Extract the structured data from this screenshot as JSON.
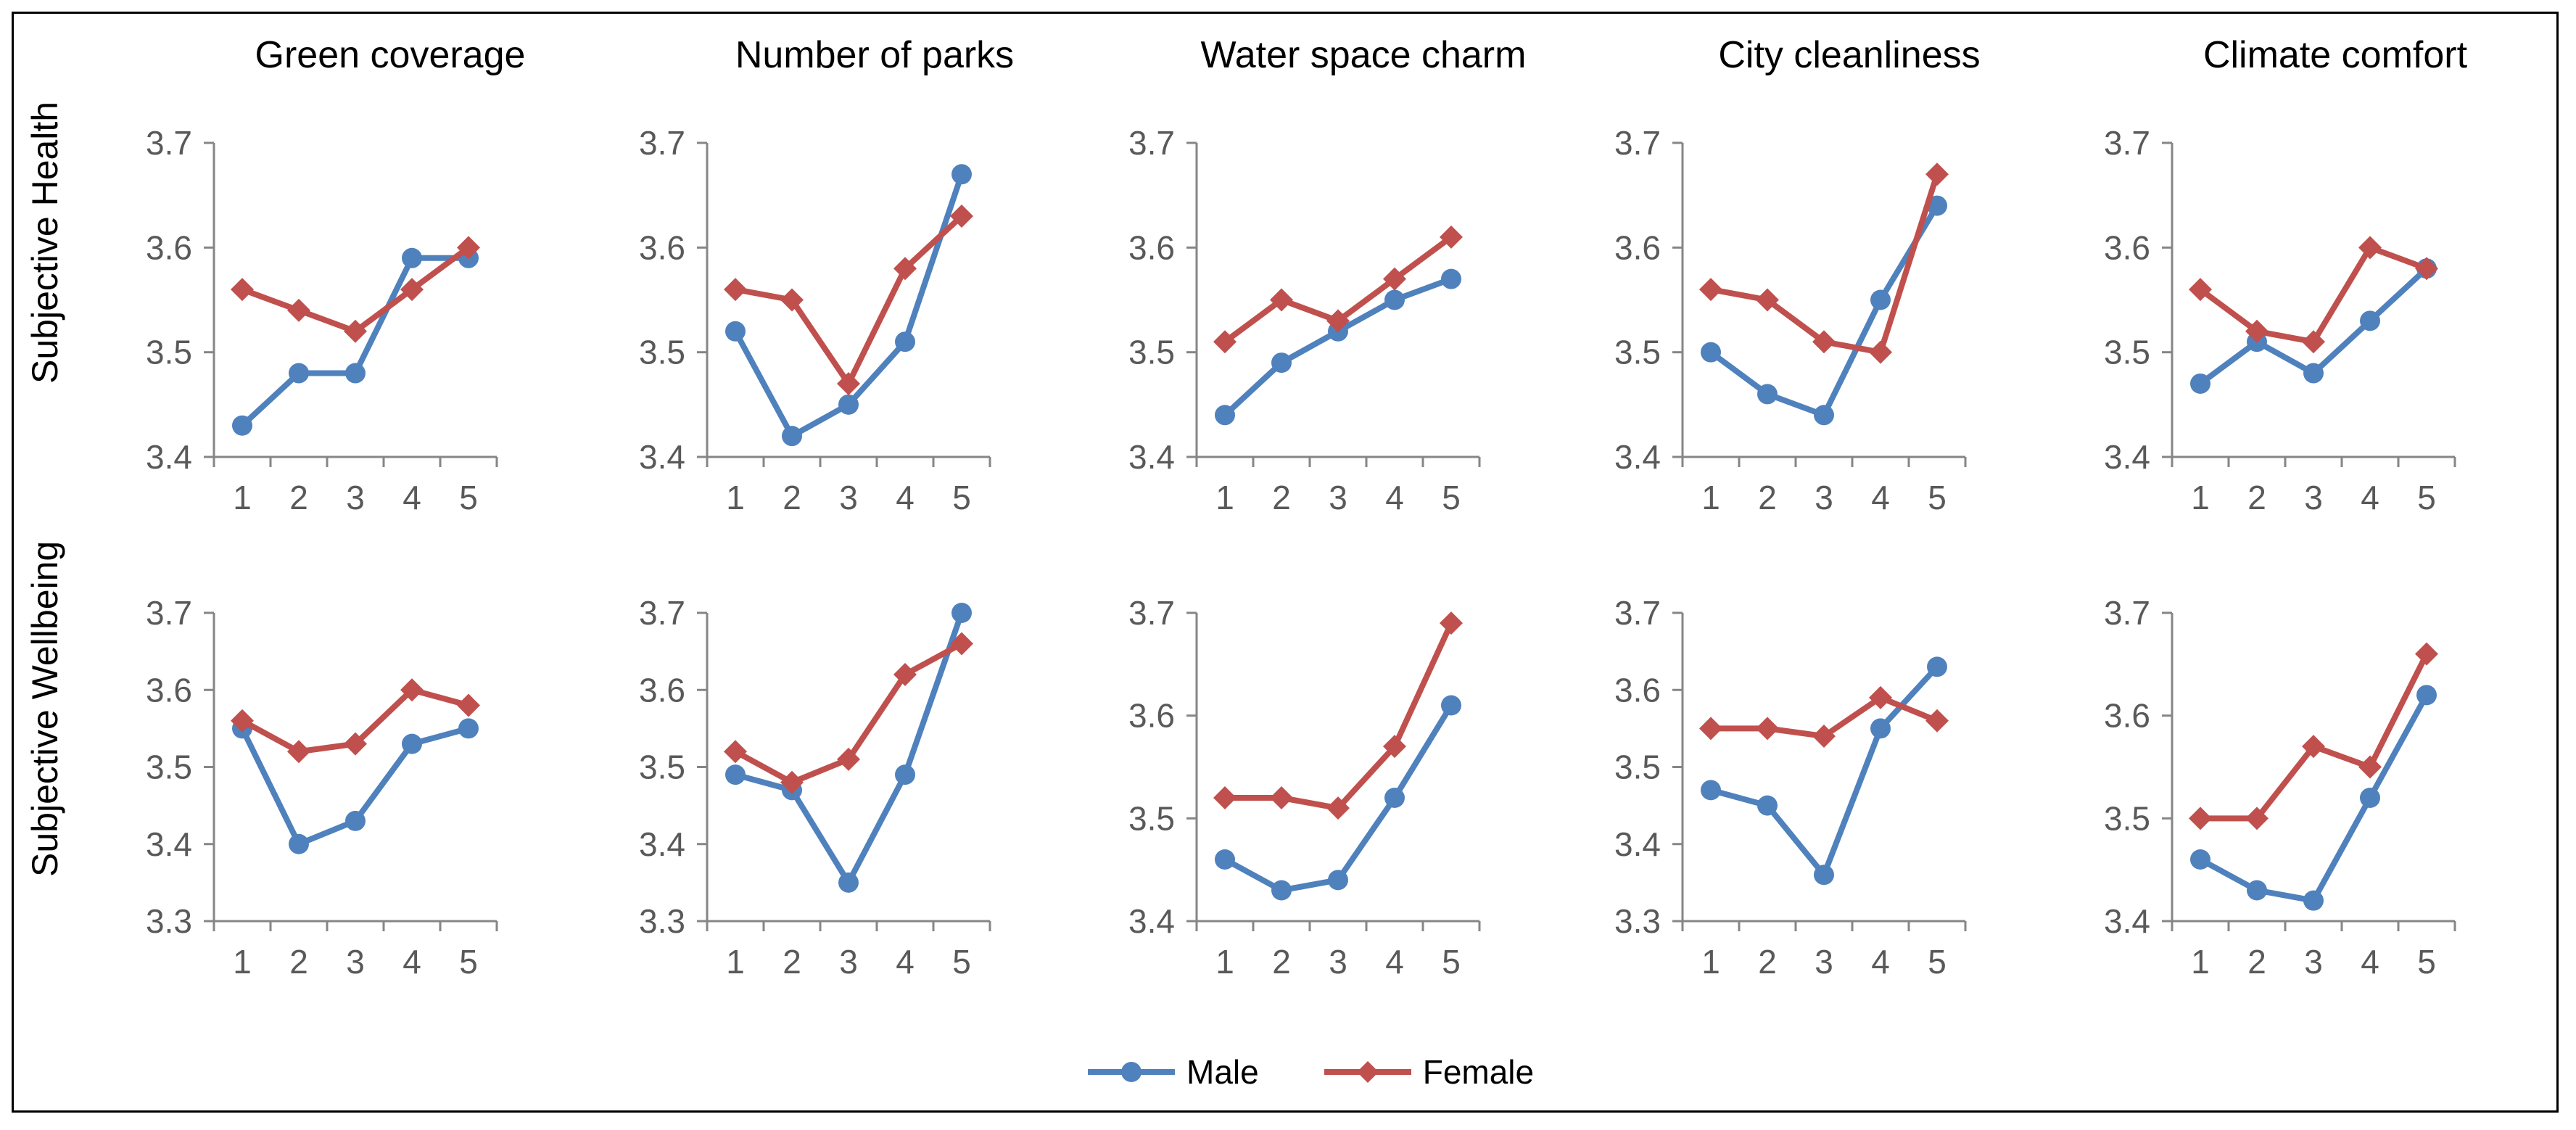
{
  "column_titles": [
    "Green coverage",
    "Number of parks",
    "Water space charm",
    "City cleanliness",
    "Climate comfort"
  ],
  "row_titles": [
    "Subjective  Health",
    "Subjective Wellbeing"
  ],
  "legend": {
    "male": "Male",
    "female": "Female"
  },
  "colors": {
    "male": "#4f81bd",
    "female": "#c0504d",
    "axis": "#868686"
  },
  "chart_data": [
    {
      "type": "line",
      "row": 0,
      "col": 0,
      "title": "Green coverage",
      "ylabel": "Subjective  Health",
      "categories": [
        "1",
        "2",
        "3",
        "4",
        "5"
      ],
      "ylim": [
        3.4,
        3.7
      ],
      "yticks": [
        "3.4",
        "3.5",
        "3.6",
        "3.7"
      ],
      "series": [
        {
          "name": "Male",
          "values": [
            3.43,
            3.48,
            3.48,
            3.59,
            3.59
          ]
        },
        {
          "name": "Female",
          "values": [
            3.56,
            3.54,
            3.52,
            3.56,
            3.6
          ]
        }
      ]
    },
    {
      "type": "line",
      "row": 0,
      "col": 1,
      "title": "Number of parks",
      "categories": [
        "1",
        "2",
        "3",
        "4",
        "5"
      ],
      "ylim": [
        3.4,
        3.7
      ],
      "yticks": [
        "3.4",
        "3.5",
        "3.6",
        "3.7"
      ],
      "series": [
        {
          "name": "Male",
          "values": [
            3.52,
            3.42,
            3.45,
            3.51,
            3.67
          ]
        },
        {
          "name": "Female",
          "values": [
            3.56,
            3.55,
            3.47,
            3.58,
            3.63
          ]
        }
      ]
    },
    {
      "type": "line",
      "row": 0,
      "col": 2,
      "title": "Water space charm",
      "categories": [
        "1",
        "2",
        "3",
        "4",
        "5"
      ],
      "ylim": [
        3.4,
        3.7
      ],
      "yticks": [
        "3.4",
        "3.5",
        "3.6",
        "3.7"
      ],
      "series": [
        {
          "name": "Male",
          "values": [
            3.44,
            3.49,
            3.52,
            3.55,
            3.57
          ]
        },
        {
          "name": "Female",
          "values": [
            3.51,
            3.55,
            3.53,
            3.57,
            3.61
          ]
        }
      ]
    },
    {
      "type": "line",
      "row": 0,
      "col": 3,
      "title": "City cleanliness",
      "categories": [
        "1",
        "2",
        "3",
        "4",
        "5"
      ],
      "ylim": [
        3.4,
        3.7
      ],
      "yticks": [
        "3.4",
        "3.5",
        "3.6",
        "3.7"
      ],
      "series": [
        {
          "name": "Male",
          "values": [
            3.5,
            3.46,
            3.44,
            3.55,
            3.64
          ]
        },
        {
          "name": "Female",
          "values": [
            3.56,
            3.55,
            3.51,
            3.5,
            3.67
          ]
        }
      ]
    },
    {
      "type": "line",
      "row": 0,
      "col": 4,
      "title": "Climate comfort",
      "categories": [
        "1",
        "2",
        "3",
        "4",
        "5"
      ],
      "ylim": [
        3.4,
        3.7
      ],
      "yticks": [
        "3.4",
        "3.5",
        "3.6",
        "3.7"
      ],
      "series": [
        {
          "name": "Male",
          "values": [
            3.47,
            3.51,
            3.48,
            3.53,
            3.58
          ]
        },
        {
          "name": "Female",
          "values": [
            3.56,
            3.52,
            3.51,
            3.6,
            3.58
          ]
        }
      ]
    },
    {
      "type": "line",
      "row": 1,
      "col": 0,
      "ylabel": "Subjective Wellbeing",
      "categories": [
        "1",
        "2",
        "3",
        "4",
        "5"
      ],
      "ylim": [
        3.3,
        3.7
      ],
      "yticks": [
        "3.3",
        "3.4",
        "3.5",
        "3.6",
        "3.7"
      ],
      "series": [
        {
          "name": "Male",
          "values": [
            3.55,
            3.4,
            3.43,
            3.53,
            3.55
          ]
        },
        {
          "name": "Female",
          "values": [
            3.56,
            3.52,
            3.53,
            3.6,
            3.58
          ]
        }
      ]
    },
    {
      "type": "line",
      "row": 1,
      "col": 1,
      "categories": [
        "1",
        "2",
        "3",
        "4",
        "5"
      ],
      "ylim": [
        3.3,
        3.7
      ],
      "yticks": [
        "3.3",
        "3.4",
        "3.5",
        "3.6",
        "3.7"
      ],
      "series": [
        {
          "name": "Male",
          "values": [
            3.49,
            3.47,
            3.35,
            3.49,
            3.7
          ]
        },
        {
          "name": "Female",
          "values": [
            3.52,
            3.48,
            3.51,
            3.62,
            3.66
          ]
        }
      ]
    },
    {
      "type": "line",
      "row": 1,
      "col": 2,
      "categories": [
        "1",
        "2",
        "3",
        "4",
        "5"
      ],
      "ylim": [
        3.4,
        3.7
      ],
      "yticks": [
        "3.4",
        "3.5",
        "3.6",
        "3.7"
      ],
      "series": [
        {
          "name": "Male",
          "values": [
            3.46,
            3.43,
            3.44,
            3.52,
            3.61
          ]
        },
        {
          "name": "Female",
          "values": [
            3.52,
            3.52,
            3.51,
            3.57,
            3.69
          ]
        }
      ]
    },
    {
      "type": "line",
      "row": 1,
      "col": 3,
      "categories": [
        "1",
        "2",
        "3",
        "4",
        "5"
      ],
      "ylim": [
        3.3,
        3.7
      ],
      "yticks": [
        "3.3",
        "3.4",
        "3.5",
        "3.6",
        "3.7"
      ],
      "series": [
        {
          "name": "Male",
          "values": [
            3.47,
            3.45,
            3.36,
            3.55,
            3.63
          ]
        },
        {
          "name": "Female",
          "values": [
            3.55,
            3.55,
            3.54,
            3.59,
            3.56
          ]
        }
      ]
    },
    {
      "type": "line",
      "row": 1,
      "col": 4,
      "categories": [
        "1",
        "2",
        "3",
        "4",
        "5"
      ],
      "ylim": [
        3.4,
        3.7
      ],
      "yticks": [
        "3.4",
        "3.5",
        "3.6",
        "3.7"
      ],
      "series": [
        {
          "name": "Male",
          "values": [
            3.46,
            3.43,
            3.42,
            3.52,
            3.62
          ]
        },
        {
          "name": "Female",
          "values": [
            3.5,
            3.5,
            3.57,
            3.55,
            3.66
          ]
        }
      ]
    }
  ]
}
